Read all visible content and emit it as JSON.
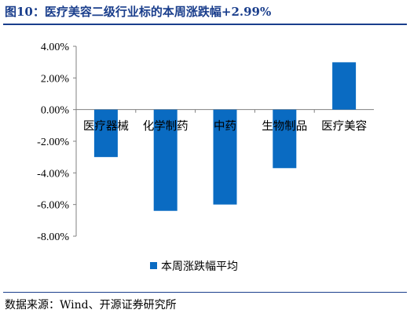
{
  "header": {
    "title": "图10：医疗美容二级行业标的本周涨跌幅+2.99%"
  },
  "footer": {
    "source": "数据来源：Wind、开源证券研究所"
  },
  "chart_data": {
    "type": "bar",
    "categories": [
      "医疗器械",
      "化学制药",
      "中药",
      "生物制品",
      "医疗美容"
    ],
    "series": [
      {
        "name": "本周涨跌幅平均",
        "values": [
          -3.0,
          -6.4,
          -6.0,
          -3.7,
          2.99
        ]
      }
    ],
    "ylim": [
      -8,
      4
    ],
    "yticks": [
      4,
      2,
      0,
      -2,
      -4,
      -6,
      -8
    ],
    "ytick_labels": [
      "4.00%",
      "2.00%",
      "0.00%",
      "-2.00%",
      "-4.00%",
      "-6.00%",
      "-8.00%"
    ],
    "grid": false,
    "legend_position": "bottom",
    "bar_color": "#0a6bc2"
  }
}
